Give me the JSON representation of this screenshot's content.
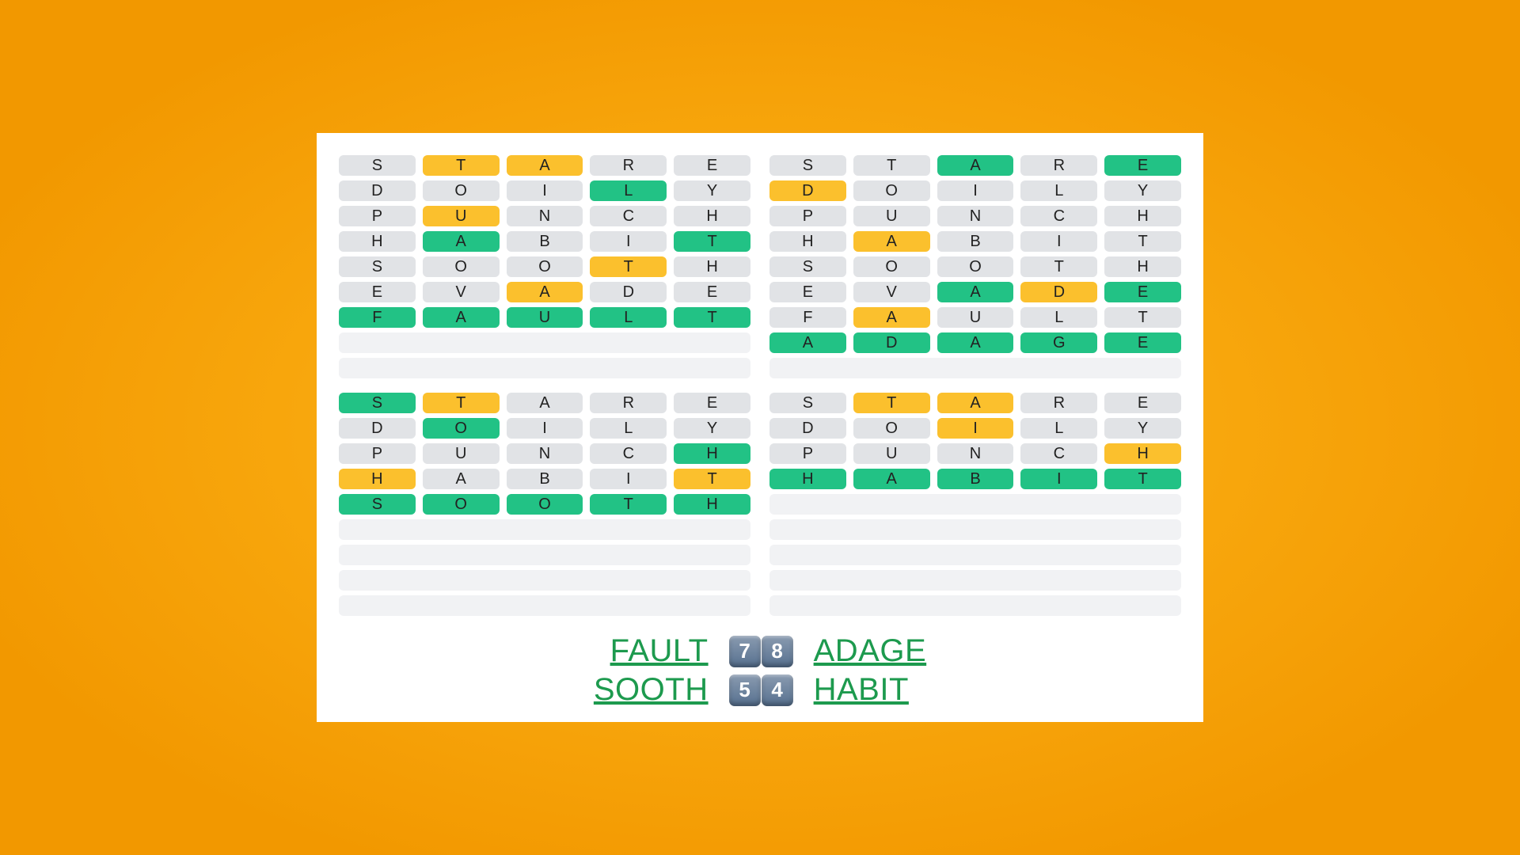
{
  "colors": {
    "none": "#e1e3e6",
    "yellow": "#fbc02d",
    "green": "#22c285",
    "bg_card": "#ffffff",
    "bg_page": "#f9a200",
    "link": "#1d9a4e"
  },
  "rows_per_board": 9,
  "boards": [
    {
      "guesses": [
        {
          "letters": [
            "S",
            "T",
            "A",
            "R",
            "E"
          ],
          "states": [
            "none",
            "yellow",
            "yellow",
            "none",
            "none"
          ]
        },
        {
          "letters": [
            "D",
            "O",
            "I",
            "L",
            "Y"
          ],
          "states": [
            "none",
            "none",
            "none",
            "green",
            "none"
          ]
        },
        {
          "letters": [
            "P",
            "U",
            "N",
            "C",
            "H"
          ],
          "states": [
            "none",
            "yellow",
            "none",
            "none",
            "none"
          ]
        },
        {
          "letters": [
            "H",
            "A",
            "B",
            "I",
            "T"
          ],
          "states": [
            "none",
            "green",
            "none",
            "none",
            "green"
          ]
        },
        {
          "letters": [
            "S",
            "O",
            "O",
            "T",
            "H"
          ],
          "states": [
            "none",
            "none",
            "none",
            "yellow",
            "none"
          ]
        },
        {
          "letters": [
            "E",
            "V",
            "A",
            "D",
            "E"
          ],
          "states": [
            "none",
            "none",
            "yellow",
            "none",
            "none"
          ]
        },
        {
          "letters": [
            "F",
            "A",
            "U",
            "L",
            "T"
          ],
          "states": [
            "green",
            "green",
            "green",
            "green",
            "green"
          ]
        }
      ]
    },
    {
      "guesses": [
        {
          "letters": [
            "S",
            "T",
            "A",
            "R",
            "E"
          ],
          "states": [
            "none",
            "none",
            "green",
            "none",
            "green"
          ]
        },
        {
          "letters": [
            "D",
            "O",
            "I",
            "L",
            "Y"
          ],
          "states": [
            "yellow",
            "none",
            "none",
            "none",
            "none"
          ]
        },
        {
          "letters": [
            "P",
            "U",
            "N",
            "C",
            "H"
          ],
          "states": [
            "none",
            "none",
            "none",
            "none",
            "none"
          ]
        },
        {
          "letters": [
            "H",
            "A",
            "B",
            "I",
            "T"
          ],
          "states": [
            "none",
            "yellow",
            "none",
            "none",
            "none"
          ]
        },
        {
          "letters": [
            "S",
            "O",
            "O",
            "T",
            "H"
          ],
          "states": [
            "none",
            "none",
            "none",
            "none",
            "none"
          ]
        },
        {
          "letters": [
            "E",
            "V",
            "A",
            "D",
            "E"
          ],
          "states": [
            "none",
            "none",
            "green",
            "yellow",
            "green"
          ]
        },
        {
          "letters": [
            "F",
            "A",
            "U",
            "L",
            "T"
          ],
          "states": [
            "none",
            "yellow",
            "none",
            "none",
            "none"
          ]
        },
        {
          "letters": [
            "A",
            "D",
            "A",
            "G",
            "E"
          ],
          "states": [
            "green",
            "green",
            "green",
            "green",
            "green"
          ]
        }
      ]
    },
    {
      "guesses": [
        {
          "letters": [
            "S",
            "T",
            "A",
            "R",
            "E"
          ],
          "states": [
            "green",
            "yellow",
            "none",
            "none",
            "none"
          ]
        },
        {
          "letters": [
            "D",
            "O",
            "I",
            "L",
            "Y"
          ],
          "states": [
            "none",
            "green",
            "none",
            "none",
            "none"
          ]
        },
        {
          "letters": [
            "P",
            "U",
            "N",
            "C",
            "H"
          ],
          "states": [
            "none",
            "none",
            "none",
            "none",
            "green"
          ]
        },
        {
          "letters": [
            "H",
            "A",
            "B",
            "I",
            "T"
          ],
          "states": [
            "yellow",
            "none",
            "none",
            "none",
            "yellow"
          ]
        },
        {
          "letters": [
            "S",
            "O",
            "O",
            "T",
            "H"
          ],
          "states": [
            "green",
            "green",
            "green",
            "green",
            "green"
          ]
        }
      ]
    },
    {
      "guesses": [
        {
          "letters": [
            "S",
            "T",
            "A",
            "R",
            "E"
          ],
          "states": [
            "none",
            "yellow",
            "yellow",
            "none",
            "none"
          ]
        },
        {
          "letters": [
            "D",
            "O",
            "I",
            "L",
            "Y"
          ],
          "states": [
            "none",
            "none",
            "yellow",
            "none",
            "none"
          ]
        },
        {
          "letters": [
            "P",
            "U",
            "N",
            "C",
            "H"
          ],
          "states": [
            "none",
            "none",
            "none",
            "none",
            "yellow"
          ]
        },
        {
          "letters": [
            "H",
            "A",
            "B",
            "I",
            "T"
          ],
          "states": [
            "green",
            "green",
            "green",
            "green",
            "green"
          ]
        }
      ]
    }
  ],
  "answers": [
    {
      "left": "FAULT",
      "digits": [
        "7",
        "8"
      ],
      "right": "ADAGE"
    },
    {
      "left": "SOOTH",
      "digits": [
        "5",
        "4"
      ],
      "right": "HABIT"
    }
  ]
}
